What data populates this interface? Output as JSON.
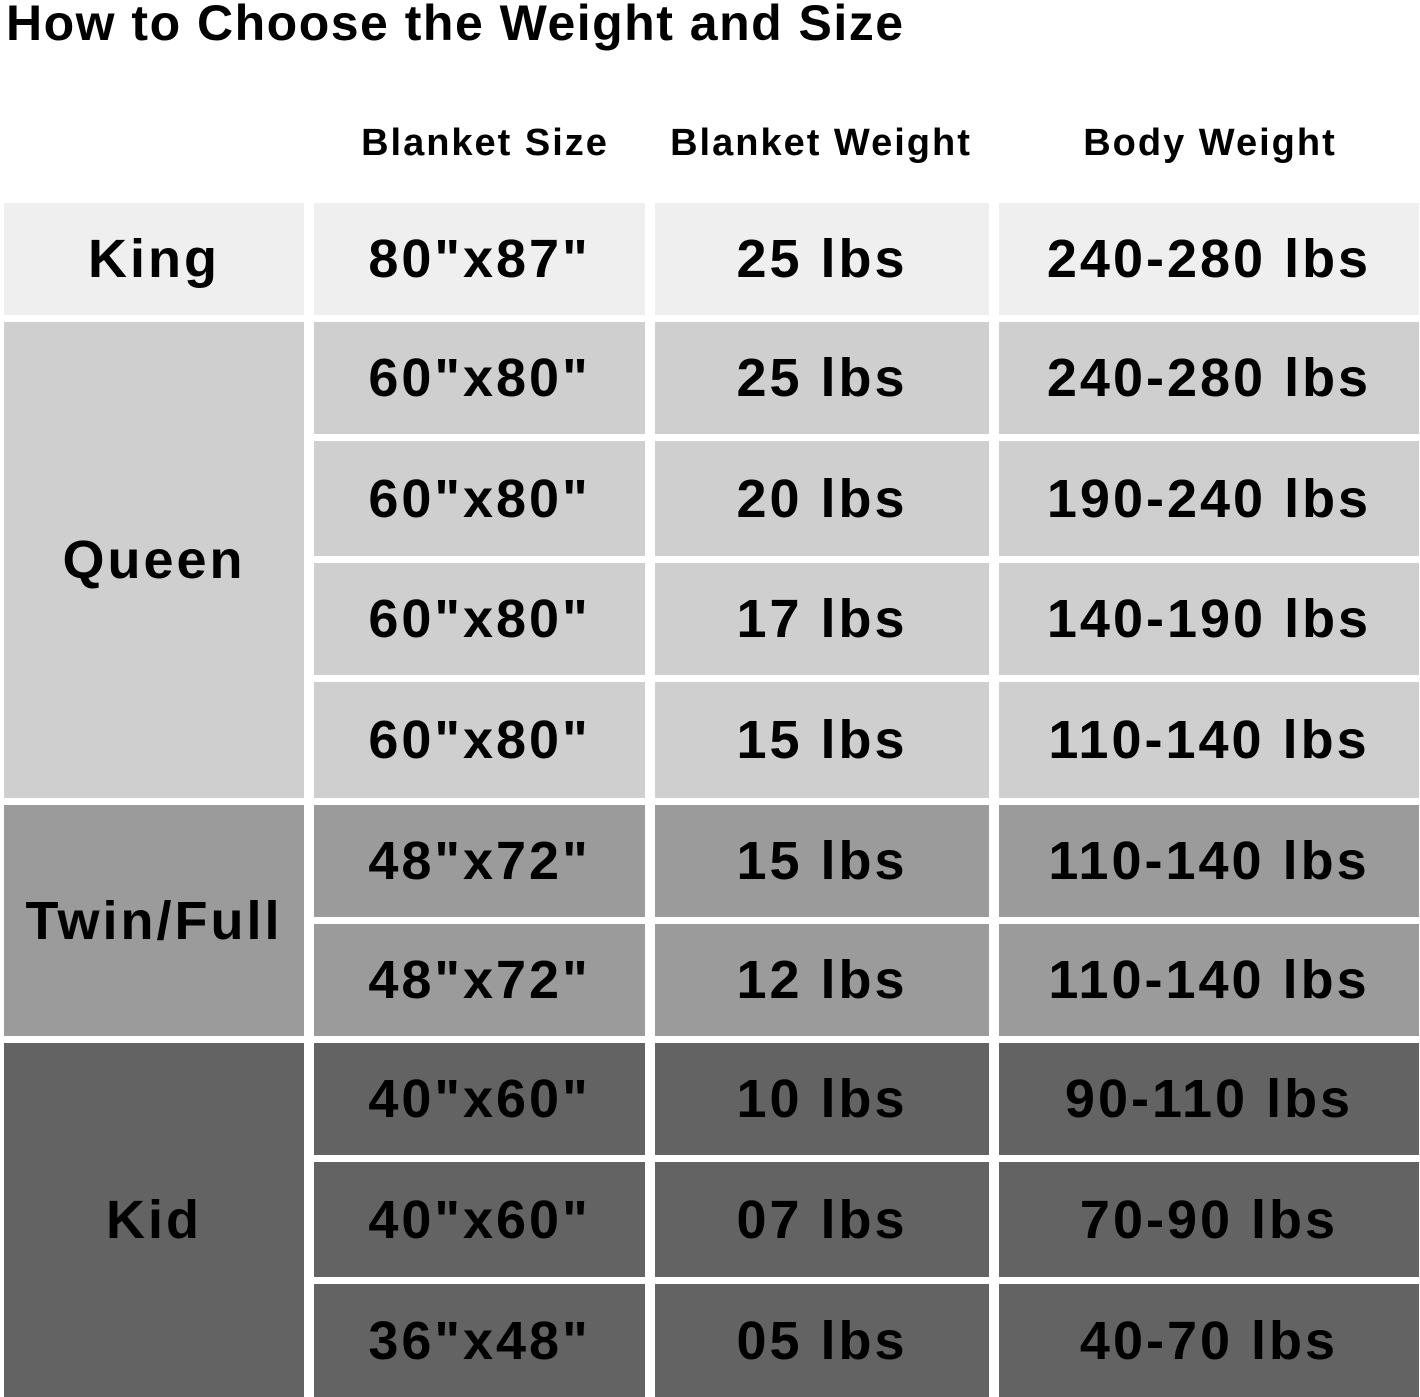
{
  "title": "How to Choose the Weight and Size",
  "headers": [
    "Blanket Size",
    "Blanket Weight",
    "Body Weight"
  ],
  "colors": {
    "king": "#efefef",
    "queen": "#cfcfcf",
    "twin_full": "#9b9b9b",
    "kid": "#636363"
  },
  "categories": [
    "King",
    "Queen",
    "Twin/Full",
    "Kid"
  ],
  "rows": [
    {
      "size": "80\"x87\"",
      "blanket_weight": "25 lbs",
      "body_weight": "240-280 lbs"
    },
    {
      "size": "60\"x80\"",
      "blanket_weight": "25 lbs",
      "body_weight": "240-280 lbs"
    },
    {
      "size": "60\"x80\"",
      "blanket_weight": "20 lbs",
      "body_weight": "190-240 lbs"
    },
    {
      "size": "60\"x80\"",
      "blanket_weight": "17 lbs",
      "body_weight": "140-190 lbs"
    },
    {
      "size": "60\"x80\"",
      "blanket_weight": "15 lbs",
      "body_weight": "110-140 lbs"
    },
    {
      "size": "48\"x72\"",
      "blanket_weight": "15 lbs",
      "body_weight": "110-140 lbs"
    },
    {
      "size": "48\"x72\"",
      "blanket_weight": "12 lbs",
      "body_weight": "110-140 lbs"
    },
    {
      "size": "40\"x60\"",
      "blanket_weight": "10 lbs",
      "body_weight": "90-110 lbs"
    },
    {
      "size": "40\"x60\"",
      "blanket_weight": "07 lbs",
      "body_weight": "70-90 lbs"
    },
    {
      "size": "36\"x48\"",
      "blanket_weight": "05 lbs",
      "body_weight": "40-70 lbs"
    }
  ]
}
